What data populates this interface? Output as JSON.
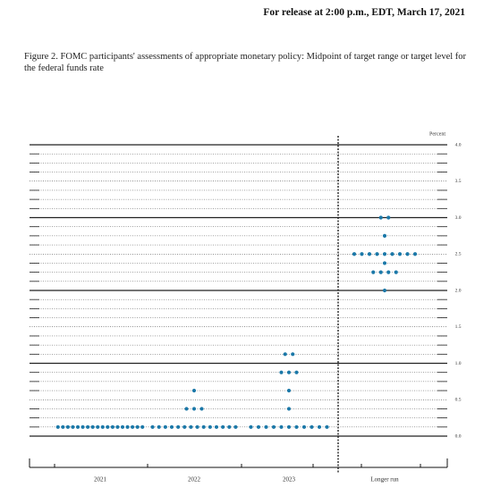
{
  "chart_data": {
    "type": "dot-plot",
    "release_note": "For release at 2:00 p.m., EDT, March 17, 2021",
    "title": "Figure 2.  FOMC participants' assessments of appropriate monetary policy: Midpoint of target range or target level for the federal funds rate",
    "y_axis_label": "Percent",
    "color": "#1b78a8",
    "ylim": [
      0,
      4
    ],
    "yticks": [
      {
        "value": 0,
        "label": "0.0"
      },
      0.5,
      {
        "value": 1,
        "label": "1.0"
      },
      1.5,
      {
        "value": 2,
        "label": "2.0"
      },
      2.5,
      {
        "value": 3,
        "label": "3.0"
      },
      3.5,
      {
        "value": 4,
        "label": "4.0"
      }
    ],
    "columns": [
      {
        "label": "2021",
        "dots": [
          {
            "rate": 0.125,
            "count": 18
          }
        ]
      },
      {
        "label": "2022",
        "dots": [
          {
            "rate": 0.125,
            "count": 14
          },
          {
            "rate": 0.375,
            "count": 3
          },
          {
            "rate": 0.625,
            "count": 1
          }
        ]
      },
      {
        "label": "2023",
        "dots": [
          {
            "rate": 0.125,
            "count": 11
          },
          {
            "rate": 0.375,
            "count": 1
          },
          {
            "rate": 0.625,
            "count": 1
          },
          {
            "rate": 0.875,
            "count": 3
          },
          {
            "rate": 1.125,
            "count": 2
          }
        ]
      },
      {
        "label": "Longer run",
        "dots": [
          {
            "rate": 2.0,
            "count": 1
          },
          {
            "rate": 2.25,
            "count": 4
          },
          {
            "rate": 2.375,
            "count": 1
          },
          {
            "rate": 2.5,
            "count": 9
          },
          {
            "rate": 2.75,
            "count": 1
          },
          {
            "rate": 3.0,
            "count": 2
          }
        ]
      }
    ]
  }
}
